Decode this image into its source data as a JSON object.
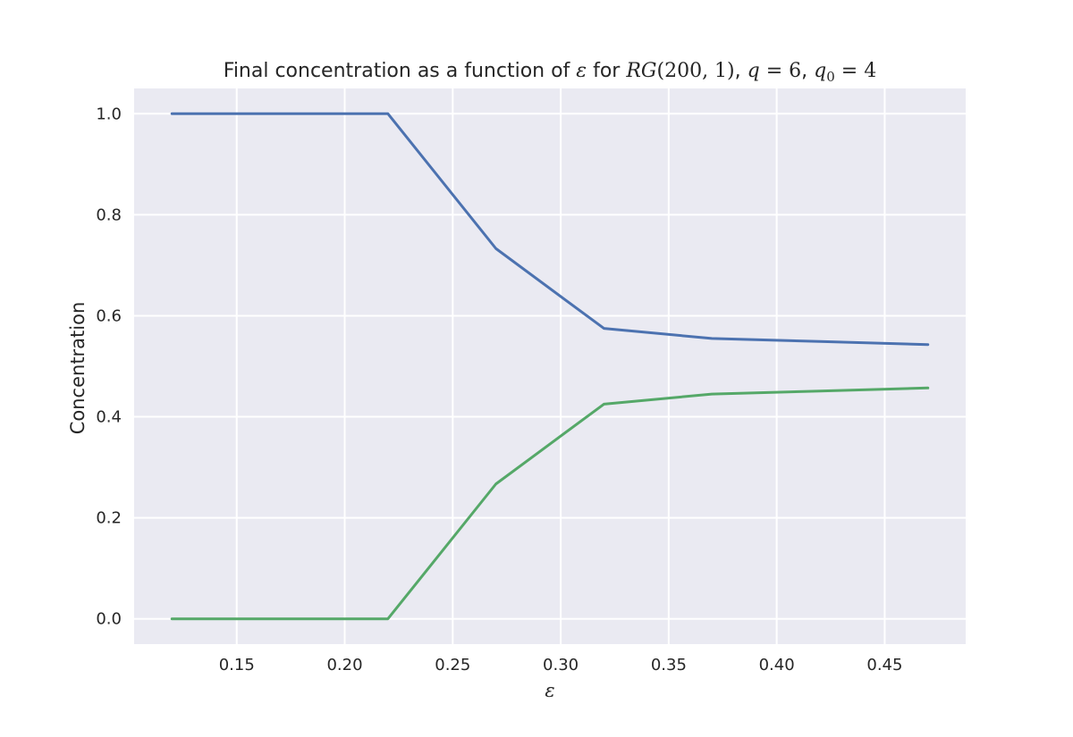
{
  "chart_data": {
    "type": "line",
    "title": {
      "prefix": "Final concentration as a function of ",
      "eps": "ε",
      "mid1": " for ",
      "rg": "RG",
      "rg_args": "(200, 1)",
      "sep1": ", ",
      "q": "q",
      "q_eq": " = 6",
      "sep2": ", ",
      "q0": "q",
      "q0_sub": "0",
      "q0_eq": " = 4"
    },
    "xlabel": "ε",
    "ylabel": "Concentration",
    "xlim": [
      0.1025,
      0.4875
    ],
    "ylim": [
      -0.05,
      1.05
    ],
    "xticks": [
      0.15,
      0.2,
      0.25,
      0.3,
      0.35,
      0.4,
      0.45
    ],
    "xtick_labels": [
      "0.15",
      "0.20",
      "0.25",
      "0.30",
      "0.35",
      "0.40",
      "0.45"
    ],
    "yticks": [
      0.0,
      0.2,
      0.4,
      0.6,
      0.8,
      1.0
    ],
    "ytick_labels": [
      "0.0",
      "0.2",
      "0.4",
      "0.6",
      "0.8",
      "1.0"
    ],
    "grid": true,
    "background": "#eaeaf2",
    "grid_color": "#ffffff",
    "x": [
      0.12,
      0.17,
      0.22,
      0.27,
      0.32,
      0.37,
      0.42,
      0.47
    ],
    "series": [
      {
        "color": "#4c72b0",
        "values": [
          1.0,
          1.0,
          1.0,
          0.733,
          0.575,
          0.555,
          0.549,
          0.543
        ]
      },
      {
        "color": "#55a868",
        "values": [
          0.0,
          0.0,
          0.0,
          0.267,
          0.425,
          0.445,
          0.451,
          0.457
        ]
      }
    ]
  }
}
